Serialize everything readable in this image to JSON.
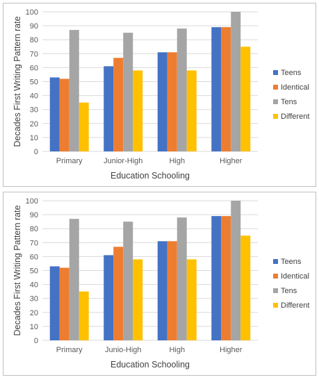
{
  "chart_data": [
    {
      "type": "bar",
      "title": "",
      "xlabel": "Education Schooling",
      "ylabel": "Decades First Writing Pattern rate",
      "ylim": [
        0,
        100
      ],
      "yticks": [
        "0",
        "10",
        "20",
        "30",
        "40",
        "50",
        "60",
        "70",
        "80",
        "90",
        "100"
      ],
      "categories": [
        "Primary",
        "Junior-High",
        "High",
        "Higher"
      ],
      "grid": true,
      "legend_position": "right",
      "series": [
        {
          "name": "Teens",
          "color": "#4472c4",
          "values": [
            53,
            61,
            71,
            89
          ]
        },
        {
          "name": "Identical",
          "color": "#ed7d31",
          "values": [
            52,
            67,
            71,
            89
          ]
        },
        {
          "name": "Tens",
          "color": "#a5a5a5",
          "values": [
            87,
            85,
            88,
            100
          ]
        },
        {
          "name": "Different",
          "color": "#ffc000",
          "values": [
            35,
            58,
            58,
            75
          ]
        }
      ]
    },
    {
      "type": "bar",
      "title": "",
      "xlabel": "Education Schooling",
      "ylabel": "Decades First Writing Pattern rate",
      "ylim": [
        0,
        100
      ],
      "yticks": [
        "0",
        "10",
        "20",
        "30",
        "40",
        "50",
        "60",
        "70",
        "80",
        "90",
        "100"
      ],
      "categories": [
        "Primary",
        "Junio-High",
        "High",
        "Higher"
      ],
      "grid": true,
      "legend_position": "right",
      "series": [
        {
          "name": "Teens",
          "color": "#4472c4",
          "values": [
            53,
            61,
            71,
            89
          ]
        },
        {
          "name": "Identical",
          "color": "#ed7d31",
          "values": [
            52,
            67,
            71,
            89
          ]
        },
        {
          "name": "Tens",
          "color": "#a5a5a5",
          "values": [
            87,
            85,
            88,
            100
          ]
        },
        {
          "name": "Different",
          "color": "#ffc000",
          "values": [
            35,
            58,
            58,
            75
          ]
        }
      ]
    }
  ]
}
